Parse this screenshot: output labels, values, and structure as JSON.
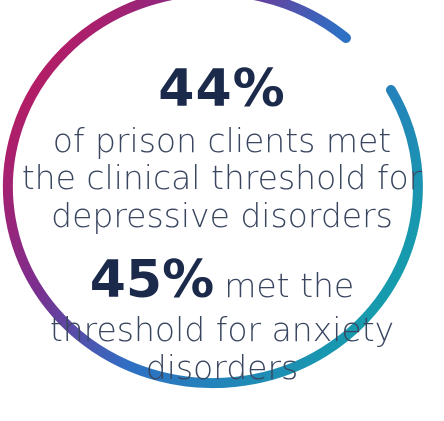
{
  "stat_one": {
    "value": "44%",
    "lines": [
      "of prison clients met",
      "the clinical threshold for",
      "depressive  disorders"
    ]
  },
  "stat_two": {
    "value": "45%",
    "inline_text": "met the",
    "lines": [
      "threshold for anxiety",
      "disorders"
    ]
  },
  "colors": {
    "text_dark": "#1b2a4a",
    "text_body": "#3a4660",
    "ring_magenta": "#c2185b",
    "ring_purple": "#5b3a9a",
    "ring_blue": "#1f78c8",
    "ring_teal": "#12a3a9"
  },
  "icons": {
    "ring": "circular-gradient-arc-icon"
  }
}
